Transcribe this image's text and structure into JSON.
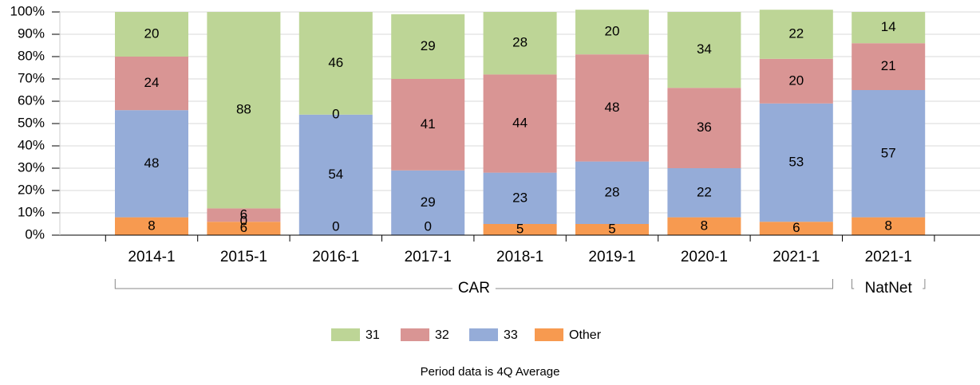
{
  "chart_data": {
    "type": "stacked_bar",
    "categories": [
      "2014-1",
      "2015-1",
      "2016-1",
      "2017-1",
      "2018-1",
      "2019-1",
      "2020-1",
      "2021-1",
      "2021-1"
    ],
    "groups": [
      "CAR",
      "NatNet"
    ],
    "series": [
      {
        "name": "Other",
        "color": "#f79a50",
        "values": [
          8,
          6,
          0,
          0,
          5,
          5,
          8,
          6,
          8
        ]
      },
      {
        "name": "33",
        "color": "#95acd8",
        "values": [
          48,
          0,
          54,
          29,
          23,
          28,
          22,
          53,
          57
        ]
      },
      {
        "name": "32",
        "color": "#d99594",
        "values": [
          24,
          6,
          0,
          41,
          44,
          48,
          36,
          20,
          21
        ]
      },
      {
        "name": "31",
        "color": "#bdd596",
        "values": [
          20,
          88,
          46,
          29,
          28,
          20,
          34,
          22,
          14
        ]
      }
    ],
    "ylim": [
      0,
      100
    ],
    "yticks": [
      {
        "value": 0,
        "label": "0%"
      },
      {
        "value": 10,
        "label": "10%"
      },
      {
        "value": 20,
        "label": "20%"
      },
      {
        "value": 30,
        "label": "30%"
      },
      {
        "value": 40,
        "label": "40%"
      },
      {
        "value": 50,
        "label": "50%"
      },
      {
        "value": 60,
        "label": "60%"
      },
      {
        "value": 70,
        "label": "70%"
      },
      {
        "value": 80,
        "label": "80%"
      },
      {
        "value": 90,
        "label": "90%"
      },
      {
        "value": 100,
        "label": "100%"
      }
    ],
    "grid": true,
    "footnote": "Period data is 4Q Average"
  }
}
